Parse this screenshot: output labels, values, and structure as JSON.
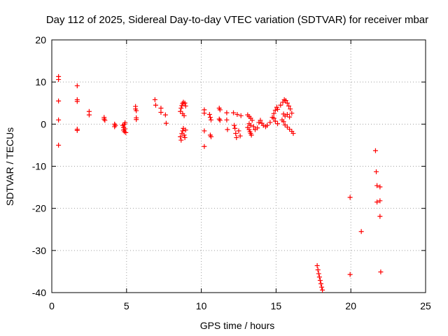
{
  "chart_data": {
    "type": "scatter",
    "title": "Day 112 of 2025, Sidereal Day-to-day VTEC variation (SDTVAR) for receiver mbar",
    "xlabel": "GPS time / hours",
    "ylabel": "SDTVAR / TECUs",
    "xlim": [
      0,
      25
    ],
    "ylim": [
      -40,
      20
    ],
    "xticks": [
      "0",
      "5",
      "10",
      "15",
      "20",
      "25"
    ],
    "yticks": [
      "20",
      "10",
      "0",
      "-10",
      "-20",
      "-30",
      "-40"
    ],
    "grid": true,
    "marker": "+",
    "color": "#ff0000",
    "series": [
      {
        "name": "SDTVAR",
        "points": [
          [
            0.45,
            11.3
          ],
          [
            0.45,
            10.6
          ],
          [
            0.45,
            5.5
          ],
          [
            0.45,
            1.0
          ],
          [
            0.45,
            -5.0
          ],
          [
            1.7,
            9.1
          ],
          [
            1.7,
            5.8
          ],
          [
            1.7,
            5.4
          ],
          [
            1.7,
            -1.2
          ],
          [
            1.7,
            -1.5
          ],
          [
            2.5,
            3.0
          ],
          [
            2.5,
            2.2
          ],
          [
            3.5,
            1.6
          ],
          [
            3.5,
            1.2
          ],
          [
            3.55,
            0.9
          ],
          [
            4.2,
            0.0
          ],
          [
            4.2,
            -0.6
          ],
          [
            4.25,
            -0.3
          ],
          [
            4.75,
            -0.3
          ],
          [
            4.8,
            -0.8
          ],
          [
            4.8,
            -1.4
          ],
          [
            4.85,
            -1.8
          ],
          [
            4.85,
            -0.1
          ],
          [
            4.9,
            0.3
          ],
          [
            4.9,
            -1.1
          ],
          [
            4.95,
            -2.0
          ],
          [
            5.6,
            4.2
          ],
          [
            5.6,
            3.6
          ],
          [
            5.65,
            3.2
          ],
          [
            5.65,
            1.5
          ],
          [
            5.65,
            1.1
          ],
          [
            6.9,
            5.8
          ],
          [
            6.95,
            4.5
          ],
          [
            7.3,
            3.8
          ],
          [
            7.3,
            2.8
          ],
          [
            7.6,
            2.2
          ],
          [
            7.65,
            0.2
          ],
          [
            8.6,
            3.0
          ],
          [
            8.65,
            3.8
          ],
          [
            8.7,
            4.4
          ],
          [
            8.75,
            4.9
          ],
          [
            8.8,
            5.2
          ],
          [
            8.9,
            5.0
          ],
          [
            8.95,
            4.3
          ],
          [
            8.75,
            2.5
          ],
          [
            8.85,
            2.0
          ],
          [
            8.6,
            -3.0
          ],
          [
            8.65,
            -3.8
          ],
          [
            8.7,
            -2.2
          ],
          [
            8.75,
            -1.6
          ],
          [
            8.8,
            -1.0
          ],
          [
            8.85,
            -2.6
          ],
          [
            8.9,
            -3.2
          ],
          [
            8.95,
            -1.4
          ],
          [
            10.2,
            3.4
          ],
          [
            10.2,
            2.6
          ],
          [
            10.2,
            -1.6
          ],
          [
            10.2,
            -5.3
          ],
          [
            10.55,
            2.3
          ],
          [
            10.6,
            1.6
          ],
          [
            10.65,
            1.0
          ],
          [
            10.6,
            -2.6
          ],
          [
            10.65,
            -3.0
          ],
          [
            11.2,
            3.8
          ],
          [
            11.25,
            3.4
          ],
          [
            11.2,
            1.2
          ],
          [
            11.25,
            0.9
          ],
          [
            11.7,
            2.7
          ],
          [
            11.7,
            1.0
          ],
          [
            11.75,
            -1.3
          ],
          [
            12.15,
            2.7
          ],
          [
            12.2,
            -0.3
          ],
          [
            12.25,
            -1.0
          ],
          [
            12.3,
            -2.2
          ],
          [
            12.35,
            -3.2
          ],
          [
            12.4,
            2.3
          ],
          [
            12.5,
            -1.6
          ],
          [
            12.6,
            -2.8
          ],
          [
            12.65,
            2.0
          ],
          [
            13.1,
            2.2
          ],
          [
            13.2,
            1.8
          ],
          [
            13.3,
            1.4
          ],
          [
            13.4,
            0.9
          ],
          [
            13.2,
            0.1
          ],
          [
            13.3,
            -0.3
          ],
          [
            13.1,
            -0.8
          ],
          [
            13.2,
            -1.3
          ],
          [
            13.25,
            -1.8
          ],
          [
            13.3,
            -2.2
          ],
          [
            13.35,
            -2.6
          ],
          [
            13.5,
            -0.6
          ],
          [
            13.6,
            -1.3
          ],
          [
            13.75,
            -0.9
          ],
          [
            13.85,
            0.4
          ],
          [
            13.95,
            0.9
          ],
          [
            14.05,
            0.2
          ],
          [
            14.15,
            -0.3
          ],
          [
            14.3,
            -0.6
          ],
          [
            14.4,
            -0.3
          ],
          [
            14.6,
            0.4
          ],
          [
            14.75,
            1.6
          ],
          [
            14.85,
            2.5
          ],
          [
            14.95,
            3.3
          ],
          [
            15.05,
            4.0
          ],
          [
            15.1,
            3.5
          ],
          [
            14.85,
            1.4
          ],
          [
            14.95,
            0.7
          ],
          [
            15.1,
            0.1
          ],
          [
            15.3,
            4.5
          ],
          [
            15.45,
            5.2
          ],
          [
            15.55,
            5.8
          ],
          [
            15.65,
            5.6
          ],
          [
            15.75,
            5.0
          ],
          [
            15.85,
            4.3
          ],
          [
            15.95,
            3.6
          ],
          [
            16.05,
            2.6
          ],
          [
            15.5,
            2.4
          ],
          [
            15.6,
            1.9
          ],
          [
            15.75,
            2.3
          ],
          [
            15.9,
            1.7
          ],
          [
            15.4,
            1.0
          ],
          [
            15.5,
            0.6
          ],
          [
            15.6,
            -0.2
          ],
          [
            15.75,
            -0.7
          ],
          [
            15.9,
            -1.2
          ],
          [
            16.05,
            -1.7
          ],
          [
            16.15,
            -2.2
          ],
          [
            17.75,
            -33.6
          ],
          [
            17.8,
            -34.6
          ],
          [
            17.85,
            -35.5
          ],
          [
            17.9,
            -36.3
          ],
          [
            17.95,
            -37.1
          ],
          [
            18.0,
            -37.9
          ],
          [
            18.05,
            -38.7
          ],
          [
            18.1,
            -39.4
          ],
          [
            19.95,
            -17.4
          ],
          [
            19.95,
            -35.7
          ],
          [
            20.7,
            -25.5
          ],
          [
            21.65,
            -6.3
          ],
          [
            21.7,
            -11.3
          ],
          [
            21.75,
            -14.6
          ],
          [
            21.75,
            -18.5
          ],
          [
            21.95,
            -14.9
          ],
          [
            21.95,
            -18.2
          ],
          [
            21.95,
            -21.9
          ],
          [
            22.0,
            -35.1
          ]
        ]
      }
    ]
  }
}
